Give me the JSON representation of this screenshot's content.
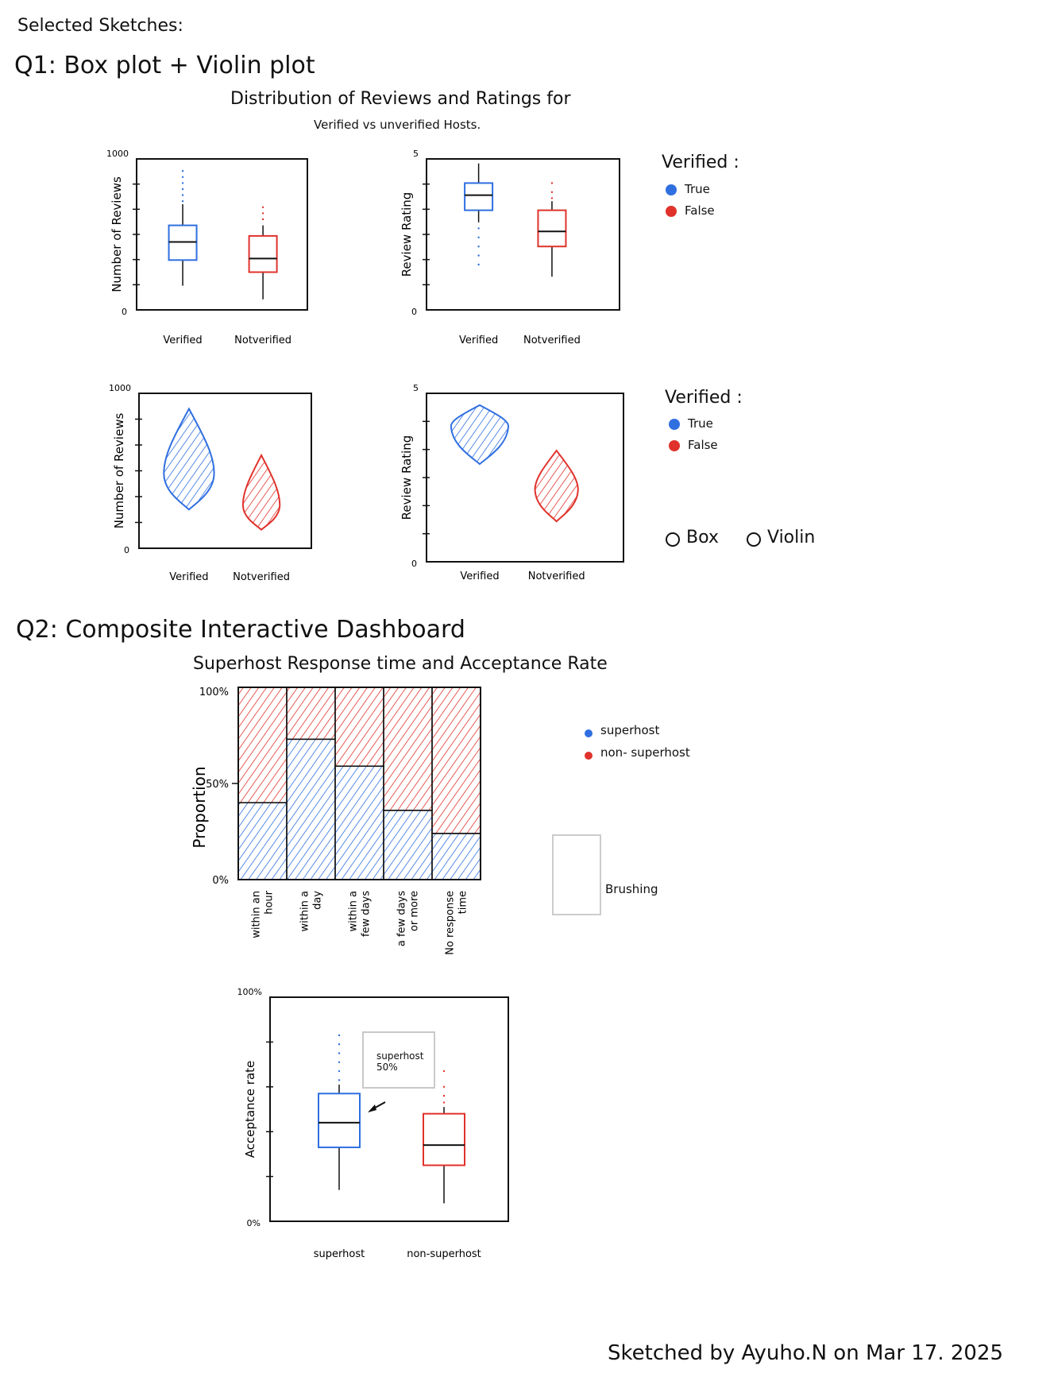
{
  "page": {
    "heading": "Selected Sketches:",
    "q1_title": "Q1: Box plot + Violin plot",
    "q1_chart_title_line1": "Distribution of Reviews and Ratings for",
    "q1_chart_title_line2": "Verified vs unverified Hosts.",
    "q2_title": "Q2: Composite Interactive Dashboard",
    "q2_chart_title": "Superhost Response time and Acceptance Rate",
    "signature": "Sketched by Ayuho.N on Mar 17. 2025"
  },
  "legend_q1a": {
    "title": "Verified :",
    "items": [
      "True",
      "False"
    ]
  },
  "legend_q1b": {
    "title": "Verified :",
    "items": [
      "True",
      "False"
    ]
  },
  "toggle": {
    "box_label": "Box",
    "violin_label": "Violin"
  },
  "legend_q2": {
    "items": [
      "superhost",
      "non- superhost"
    ]
  },
  "brushing_label": "Brushing",
  "tooltip": {
    "line1": "superhost",
    "line2": "50%"
  },
  "colors": {
    "blue": "#2f6fe0",
    "red": "#e0322b",
    "black": "#111111"
  },
  "chart_data": [
    {
      "type": "box",
      "ylabel": "Number of Reviews",
      "ylim": [
        0,
        1000
      ],
      "ytick_labels": [
        "0",
        "1000"
      ],
      "categories": [
        "Verified",
        "Notverified"
      ],
      "boxes": [
        {
          "category": "Verified",
          "min": 160,
          "q1": 330,
          "median": 450,
          "q3": 560,
          "max": 700,
          "outliers": [
            720,
            760,
            800,
            840,
            880,
            920
          ]
        },
        {
          "category": "Notverified",
          "min": 70,
          "q1": 250,
          "median": 340,
          "q3": 490,
          "max": 560,
          "outliers": [
            600,
            640,
            680
          ]
        }
      ]
    },
    {
      "type": "box",
      "ylabel": "Review Rating",
      "ylim": [
        0,
        5
      ],
      "ytick_labels": [
        "0",
        "5"
      ],
      "categories": [
        "Verified",
        "Notverified"
      ],
      "boxes": [
        {
          "category": "Verified",
          "min": 2.9,
          "q1": 3.3,
          "median": 3.8,
          "q3": 4.2,
          "max": 4.85,
          "outliers": [
            1.5,
            1.8,
            2.1,
            2.4,
            2.7
          ]
        },
        {
          "category": "Notverified",
          "min": 1.1,
          "q1": 2.1,
          "median": 2.6,
          "q3": 3.3,
          "max": 3.6,
          "outliers": [
            3.7,
            3.9,
            4.2
          ]
        }
      ]
    },
    {
      "type": "violin",
      "ylabel": "Number of Reviews",
      "ylim": [
        0,
        1000
      ],
      "ytick_labels": [
        "0",
        "1000"
      ],
      "categories": [
        "Verified",
        "Notverified"
      ],
      "violins": [
        {
          "category": "Verified",
          "low": 250,
          "peak": 470,
          "high": 900,
          "width": 0.75
        },
        {
          "category": "Notverified",
          "low": 120,
          "peak": 270,
          "high": 600,
          "width": 0.55
        }
      ]
    },
    {
      "type": "violin",
      "ylabel": "Review Rating",
      "ylim": [
        0,
        5
      ],
      "ytick_labels": [
        "0",
        "5"
      ],
      "categories": [
        "Verified",
        "Notverified"
      ],
      "violins": [
        {
          "category": "Verified",
          "low": 2.9,
          "peak": 4.0,
          "high": 4.65,
          "width": 0.8
        },
        {
          "category": "Notverified",
          "low": 1.2,
          "peak": 2.1,
          "high": 3.3,
          "width": 0.6
        }
      ]
    },
    {
      "type": "bar",
      "subtype": "stacked-100",
      "title": "Superhost Response time and Acceptance Rate",
      "ylabel": "Proportion",
      "ytick_labels": [
        "0%",
        "50%",
        "100%"
      ],
      "ylim": [
        0,
        100
      ],
      "categories": [
        "within an hour",
        "within a day",
        "within a few days",
        "a few days or more",
        "No response time"
      ],
      "series": [
        {
          "name": "superhost",
          "values": [
            40,
            73,
            59,
            36,
            24
          ]
        },
        {
          "name": "non- superhost",
          "values": [
            60,
            27,
            41,
            64,
            76
          ]
        }
      ]
    },
    {
      "type": "box",
      "ylabel": "Acceptance rate",
      "ylim": [
        0,
        100
      ],
      "ytick_labels": [
        "0%",
        "100%"
      ],
      "categories": [
        "superhost",
        "non-superhost"
      ],
      "boxes": [
        {
          "category": "superhost",
          "min": 14,
          "q1": 33,
          "median": 44,
          "q3": 57,
          "max": 61,
          "outliers": [
            63,
            67,
            71,
            75,
            79,
            83
          ]
        },
        {
          "category": "non-superhost",
          "min": 8,
          "q1": 25,
          "median": 34,
          "q3": 48,
          "max": 51,
          "outliers": [
            53,
            56,
            60,
            67
          ]
        }
      ]
    }
  ]
}
